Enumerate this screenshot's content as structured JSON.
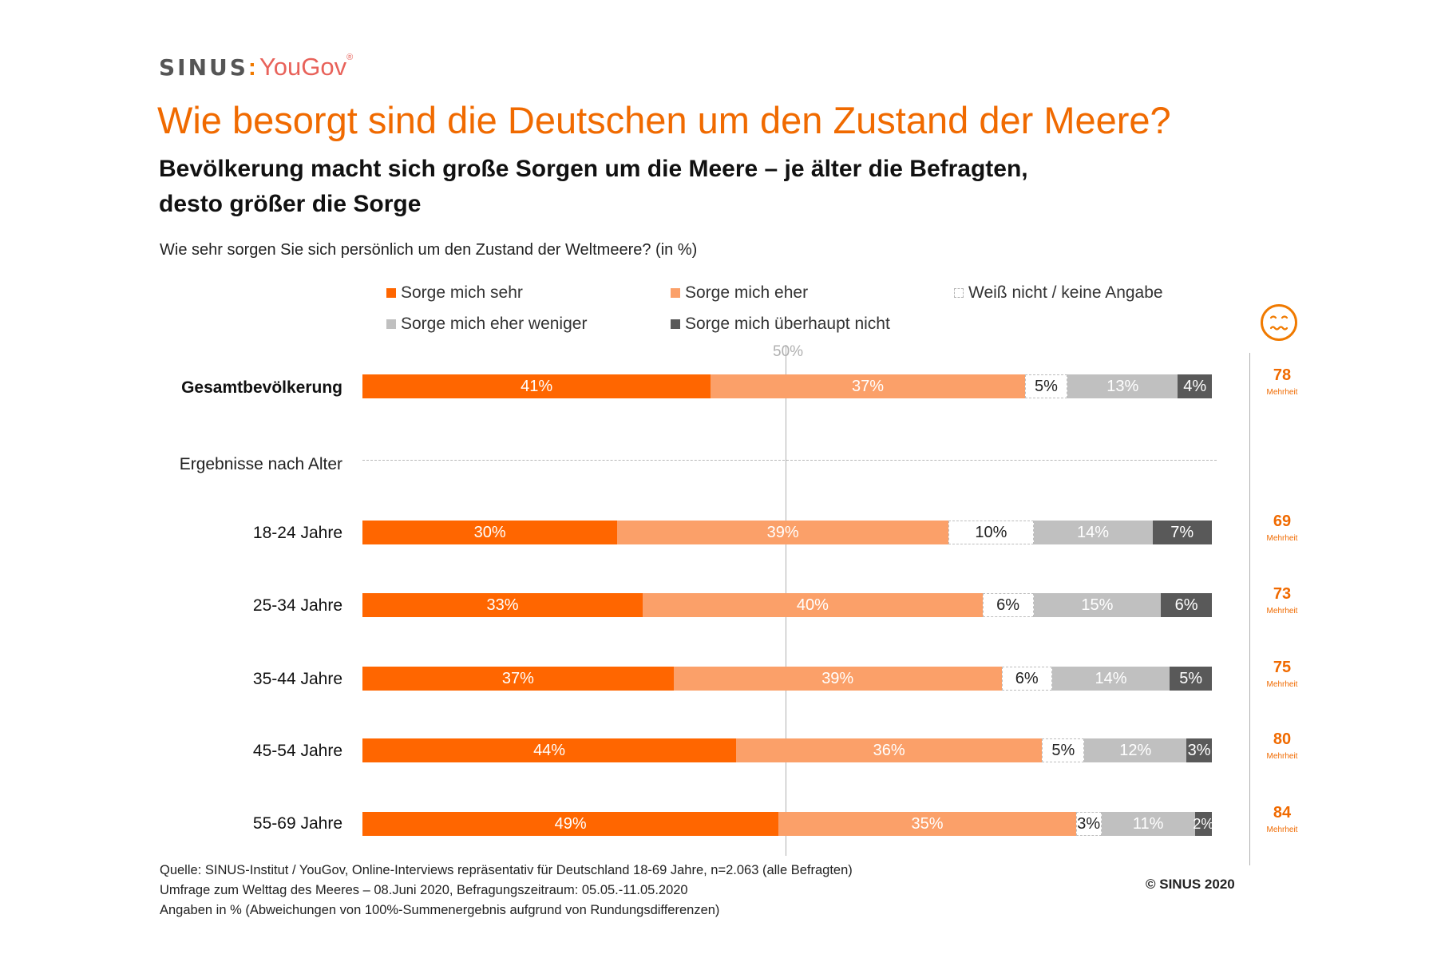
{
  "logo": {
    "sinus": "SINUS",
    "colon": ":",
    "yougov": "YouGov",
    "reg": "®"
  },
  "title": "Wie besorgt sind die Deutschen um den Zustand der Meere?",
  "subtitle_line1": "Bevölkerung macht sich große Sorgen um die Meere – je älter die Befragten,",
  "subtitle_line2": "desto größer die Sorge",
  "question": "Wie sehr sorgen Sie sich persönlich um den Zustand der Weltmeere?  (in %)",
  "colors": {
    "sehr": "#ff6600",
    "eher": "#fba069",
    "dk": "#ffffff",
    "weniger": "#c0c0c0",
    "nicht": "#595959",
    "accent": "#f06a00"
  },
  "chart_data": {
    "type": "bar",
    "orientation": "horizontal",
    "stacked": true,
    "title": "Wie sehr sorgen Sie sich persönlich um den Zustand der Weltmeere?  (in %)",
    "reference_label": "50%",
    "reference_value": 50,
    "separator_label": "Ergebnisse nach Alter",
    "majority_label": "Mehrheit",
    "legend": [
      {
        "key": "sehr",
        "label": "Sorge mich sehr"
      },
      {
        "key": "eher",
        "label": "Sorge mich eher"
      },
      {
        "key": "dk",
        "label": "Weiß nicht / keine Angabe"
      },
      {
        "key": "weniger",
        "label": "Sorge mich eher weniger"
      },
      {
        "key": "nicht",
        "label": "Sorge mich überhaupt nicht"
      }
    ],
    "categories": [
      "Gesamtbevölkerung",
      "18-24 Jahre",
      "25-34 Jahre",
      "35-44 Jahre",
      "45-54 Jahre",
      "55-69 Jahre"
    ],
    "series": [
      {
        "key": "sehr",
        "name": "Sorge mich sehr",
        "values": [
          41,
          30,
          33,
          37,
          44,
          49
        ]
      },
      {
        "key": "eher",
        "name": "Sorge mich eher",
        "values": [
          37,
          39,
          40,
          39,
          36,
          35
        ]
      },
      {
        "key": "dk",
        "name": "Weiß nicht / keine Angabe",
        "values": [
          5,
          10,
          6,
          6,
          5,
          3
        ]
      },
      {
        "key": "weniger",
        "name": "Sorge mich eher weniger",
        "values": [
          13,
          14,
          15,
          14,
          12,
          11
        ]
      },
      {
        "key": "nicht",
        "name": "Sorge mich überhaupt nicht",
        "values": [
          4,
          7,
          6,
          5,
          3,
          2
        ]
      }
    ],
    "majority": [
      78,
      69,
      73,
      75,
      80,
      84
    ],
    "xlim": [
      0,
      100
    ]
  },
  "source_lines": [
    "Quelle: SINUS-Institut / YouGov, Online-Interviews repräsentativ für Deutschland 18-69 Jahre, n=2.063  (alle Befragten)",
    "Umfrage zum Welttag des Meeres – 08.Juni 2020, Befragungszeitraum: 05.05.-11.05.2020",
    "Angaben  in % (Abweichungen  von 100%-Summenergebnis  aufgrund von Rundungsdifferenzen)"
  ],
  "copyright": "© SINUS  2020"
}
